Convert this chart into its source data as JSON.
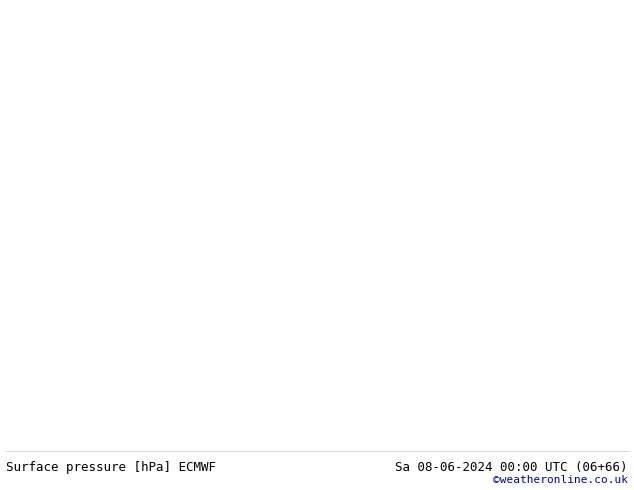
{
  "title_left": "Surface pressure [hPa] ECMWF",
  "title_right": "Sa 08-06-2024 00:00 UTC (06+66)",
  "watermark": "©weatheronline.co.uk",
  "bg_color": "#ffffff",
  "map_bg": "#e8e8e8",
  "land_color": "#c8e6a0",
  "ocean_color": "#ddeeff",
  "border_color": "#888888",
  "contour_low_color": "#0000cc",
  "contour_high_color": "#cc0000",
  "contour_1013_color": "#000000",
  "label_fontsize": 7,
  "title_fontsize": 9,
  "watermark_color": "#0000aa",
  "pressure_min": 940,
  "pressure_max": 1040,
  "pressure_step": 4,
  "pressure_1013": 1013
}
